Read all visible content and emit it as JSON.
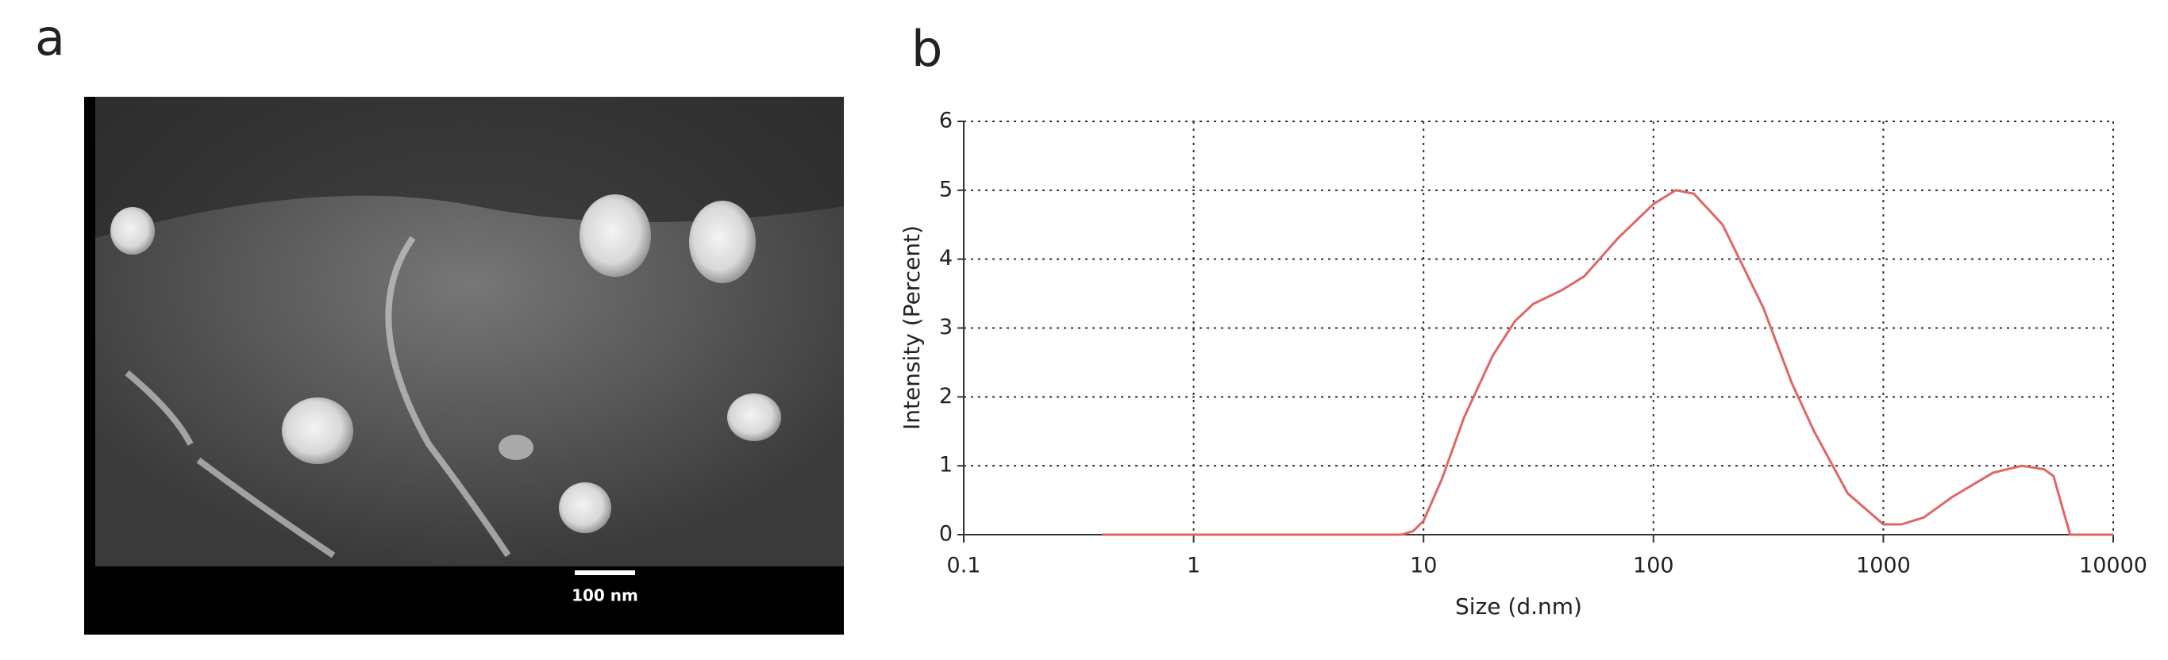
{
  "panel_labels": [
    "a",
    "b"
  ],
  "image": {
    "scale_bar": "100 nm"
  },
  "chart_data": {
    "type": "line",
    "x_label": "Size (d.nm)",
    "y_label": "Intensity (Percent)",
    "x": [
      0.4,
      1,
      5,
      8,
      9,
      10,
      12,
      15,
      20,
      25,
      30,
      40,
      50,
      70,
      100,
      125,
      150,
      200,
      300,
      400,
      500,
      700,
      1000,
      1200,
      1500,
      2000,
      3000,
      4000,
      5000,
      5500,
      6000,
      6500,
      8000,
      10000
    ],
    "values": [
      0,
      0,
      0,
      0,
      0.05,
      0.2,
      0.8,
      1.7,
      2.6,
      3.1,
      3.35,
      3.55,
      3.75,
      4.3,
      4.8,
      5.0,
      4.95,
      4.5,
      3.3,
      2.2,
      1.5,
      0.6,
      0.15,
      0.15,
      0.25,
      0.55,
      0.9,
      1.0,
      0.95,
      0.85,
      0.4,
      0,
      0,
      0
    ],
    "color": "#e06666",
    "x_scale": "log",
    "xlim": [
      0.1,
      10000
    ],
    "xticks": [
      0.1,
      1,
      10,
      100,
      1000,
      10000
    ],
    "ylim": [
      0,
      6
    ],
    "yticks": [
      0,
      1,
      2,
      3,
      4,
      5,
      6
    ],
    "grid": true
  }
}
